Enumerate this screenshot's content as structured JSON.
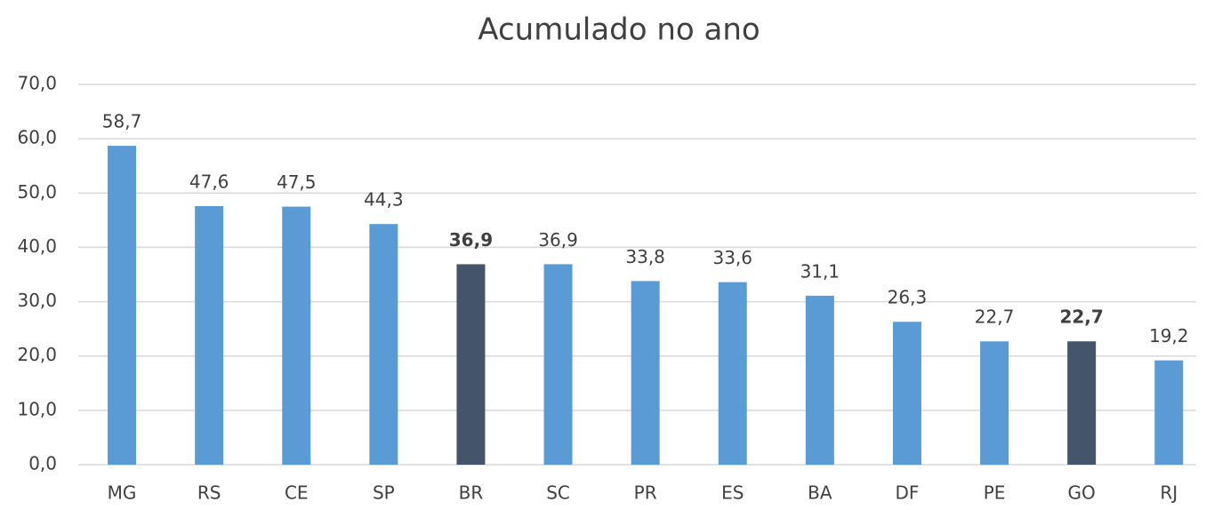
{
  "chart_data": {
    "type": "bar",
    "title": "Acumulado no ano",
    "categories": [
      "MG",
      "RS",
      "CE",
      "SP",
      "BR",
      "SC",
      "PR",
      "ES",
      "BA",
      "DF",
      "PE",
      "GO",
      "RJ"
    ],
    "values": [
      58.7,
      47.6,
      47.5,
      44.3,
      36.9,
      36.9,
      33.8,
      33.6,
      31.1,
      26.3,
      22.7,
      22.7,
      19.2
    ],
    "value_labels": [
      "58,7",
      "47,6",
      "47,5",
      "44,3",
      "36,9",
      "36,9",
      "33,8",
      "33,6",
      "31,1",
      "26,3",
      "22,7",
      "22,7",
      "19,2"
    ],
    "colors": [
      "#5b9bd5",
      "#5b9bd5",
      "#5b9bd5",
      "#5b9bd5",
      "#44546a",
      "#5b9bd5",
      "#5b9bd5",
      "#5b9bd5",
      "#5b9bd5",
      "#5b9bd5",
      "#5b9bd5",
      "#44546a",
      "#5b9bd5"
    ],
    "bold_labels": [
      false,
      false,
      false,
      false,
      true,
      false,
      false,
      false,
      false,
      false,
      false,
      true,
      false
    ],
    "ylim": [
      0,
      70
    ],
    "yticks": [
      {
        "value": 0,
        "label": "0,0"
      },
      {
        "value": 10,
        "label": "10,0"
      },
      {
        "value": 20,
        "label": "20,0"
      },
      {
        "value": 30,
        "label": "30,0"
      },
      {
        "value": 40,
        "label": "40,0"
      },
      {
        "value": 50,
        "label": "50,0"
      },
      {
        "value": 60,
        "label": "60,0"
      },
      {
        "value": 70,
        "label": "70,0"
      }
    ],
    "grid": true
  }
}
